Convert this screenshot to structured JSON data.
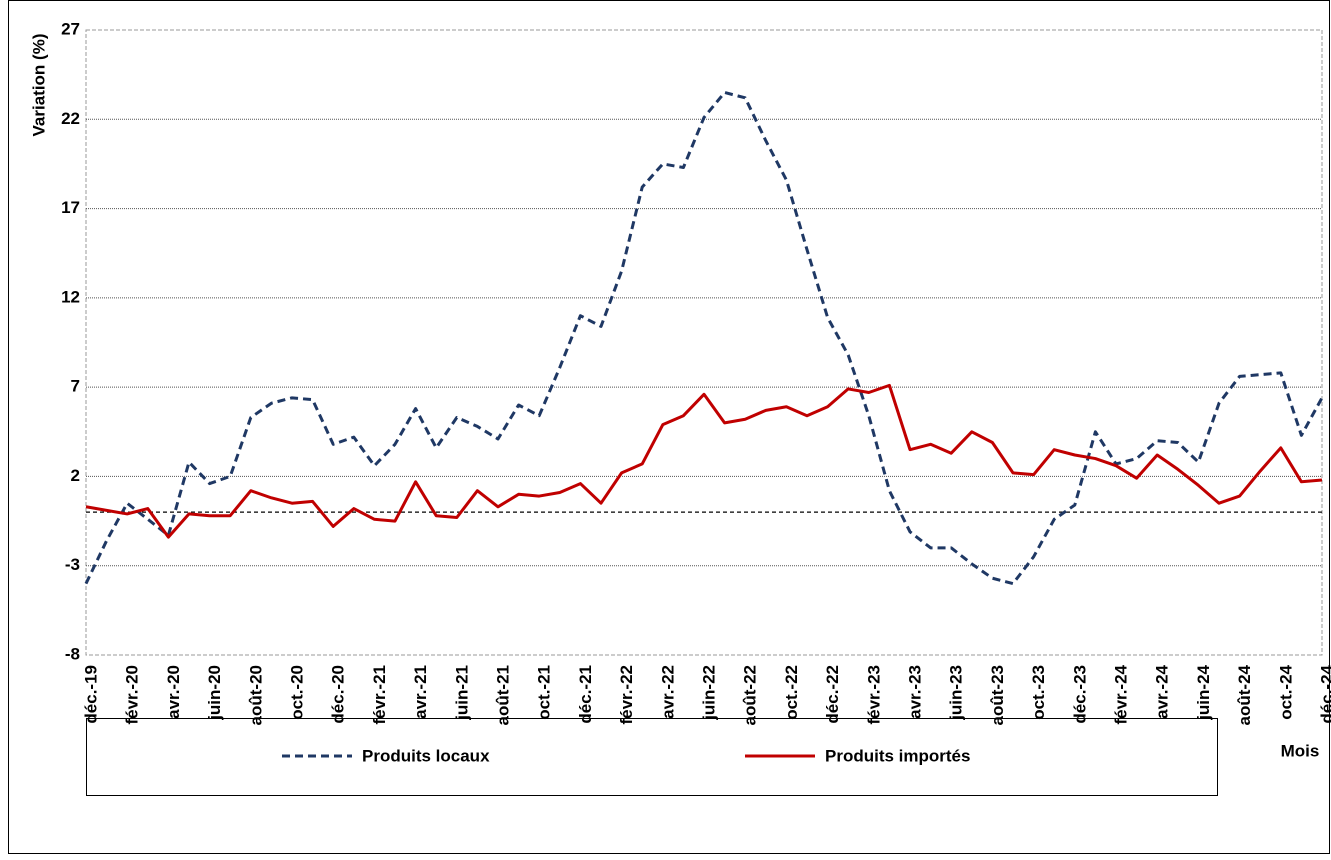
{
  "chart_data": {
    "type": "line",
    "ylabel": "Variation (%)",
    "xlabel": "Mois",
    "categories": [
      "déc.-19",
      null,
      "févr.-20",
      null,
      "avr.-20",
      null,
      "juin-20",
      null,
      "août-20",
      null,
      "oct.-20",
      null,
      "déc.-20",
      null,
      "févr.-21",
      null,
      "avr.-21",
      null,
      "juin-21",
      null,
      "août-21",
      null,
      "oct.-21",
      null,
      "déc.-21",
      null,
      "févr.-22",
      null,
      "avr.-22",
      null,
      "juin-22",
      null,
      "août-22",
      null,
      "oct.-22",
      null,
      "déc.-22",
      null,
      "févr.-23",
      null,
      "avr.-23",
      null,
      "juin-23",
      null,
      "août-23",
      null,
      "oct.-23",
      null,
      "déc.-23",
      null,
      "févr.-24",
      null,
      "avr.-24",
      null,
      "juin-24",
      null,
      "août-24",
      null,
      "oct.-24",
      null,
      "déc.-24"
    ],
    "series": [
      {
        "name": "Produits locaux",
        "color": "#1f3864",
        "dash": true,
        "values": [
          -4.0,
          -1.6,
          0.5,
          -0.4,
          -1.3,
          2.8,
          1.6,
          2.0,
          5.3,
          6.1,
          6.4,
          6.3,
          3.8,
          4.2,
          2.6,
          3.8,
          5.8,
          3.6,
          5.3,
          4.8,
          4.1,
          6.0,
          5.4,
          8.1,
          11.0,
          10.4,
          13.5,
          18.2,
          19.5,
          19.3,
          22.1,
          23.5,
          23.2,
          20.8,
          18.6,
          14.7,
          10.9,
          8.8,
          5.4,
          1.2,
          -1.1,
          -2.0,
          -2.0,
          -2.9,
          -3.7,
          -4.0,
          -2.5,
          -0.4,
          0.4,
          4.5,
          2.7,
          3.0,
          4.0,
          3.9,
          2.8,
          6.1,
          7.6,
          7.7,
          7.8,
          4.3,
          6.4
        ]
      },
      {
        "name": "Produits importés",
        "color": "#c00000",
        "dash": false,
        "values": [
          0.3,
          0.1,
          -0.1,
          0.2,
          -1.4,
          -0.1,
          -0.2,
          -0.2,
          1.2,
          0.8,
          0.5,
          0.6,
          -0.8,
          0.2,
          -0.4,
          -0.5,
          1.7,
          -0.2,
          -0.3,
          1.2,
          0.3,
          1.0,
          0.9,
          1.1,
          1.6,
          0.5,
          2.2,
          2.7,
          4.9,
          5.4,
          6.6,
          5.0,
          5.2,
          5.7,
          5.9,
          5.4,
          5.9,
          6.9,
          6.7,
          7.1,
          3.5,
          3.8,
          3.3,
          4.5,
          3.9,
          2.2,
          2.1,
          3.5,
          3.2,
          3.0,
          2.6,
          1.9,
          3.2,
          2.4,
          1.5,
          0.5,
          0.9,
          2.3,
          3.6,
          1.7,
          1.8
        ]
      }
    ],
    "ylim": [
      -8,
      27
    ],
    "yticks": [
      -8,
      -3,
      2,
      7,
      12,
      17,
      22,
      27
    ],
    "grid": true
  }
}
